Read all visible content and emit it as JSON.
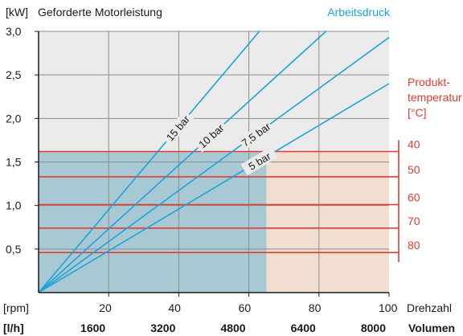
{
  "chart_data": {
    "type": "line",
    "y_unit": "[kW]",
    "y_title": "Geforderte Motorleistung",
    "legend_title": "Arbeitsdruck",
    "ylim": [
      0,
      3.0
    ],
    "yticks": [
      "3,0",
      "2,5",
      "2,0",
      "1,5",
      "1,0",
      "0,5"
    ],
    "ytick_values": [
      3.0,
      2.5,
      2.0,
      1.5,
      1.0,
      0.5
    ],
    "xlim": [
      0,
      100
    ],
    "x_rpm_unit": "[rpm]",
    "x_rpm_ticks": [
      "20",
      "40",
      "60",
      "80",
      "100"
    ],
    "x_rpm_values": [
      20,
      40,
      60,
      80,
      100
    ],
    "x_rpm_label": "Drehzahl",
    "x_vol_unit": "[l/h]",
    "x_vol_ticks": [
      "1600",
      "3200",
      "4800",
      "6400",
      "8000"
    ],
    "x_vol_label": "Volumen",
    "grid": true,
    "series": [
      {
        "name": "15 bar",
        "color": "#1ca3d8",
        "x": [
          0,
          63
        ],
        "y": [
          0,
          3.0
        ]
      },
      {
        "name": "10 bar",
        "color": "#1ca3d8",
        "x": [
          0,
          82
        ],
        "y": [
          0,
          3.0
        ]
      },
      {
        "name": "7,5 bar",
        "color": "#1ca3d8",
        "x": [
          0,
          100
        ],
        "y": [
          0,
          2.93
        ]
      },
      {
        "name": "5 bar",
        "color": "#1ca3d8",
        "x": [
          0,
          100
        ],
        "y": [
          0,
          2.4
        ]
      }
    ],
    "temperature_scale": {
      "title": [
        "Produkt-",
        "temperatur",
        "[°C]"
      ],
      "color": "#e03c31",
      "levels": [
        {
          "label": "40",
          "y": 1.62
        },
        {
          "label": "50",
          "y": 1.33
        },
        {
          "label": "60",
          "y": 1.01
        },
        {
          "label": "70",
          "y": 0.74
        },
        {
          "label": "80",
          "y": 0.46
        }
      ]
    },
    "regions": [
      {
        "name": "operating-area",
        "x": [
          0,
          65
        ],
        "y": [
          0,
          1.62
        ],
        "color": "#9cc3cf"
      },
      {
        "name": "extended-area",
        "x": [
          65,
          100
        ],
        "y": [
          0,
          1.62
        ],
        "color": "#f3dccb"
      }
    ],
    "colors": {
      "plot_bg": "#ebebeb",
      "grid": "#8c8c8c",
      "axis": "#1a1a1a",
      "line": "#1ca3d8",
      "temperature": "#e03c31"
    }
  }
}
